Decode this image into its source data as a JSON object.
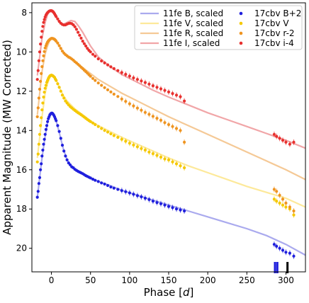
{
  "chart_data": {
    "type": "scatter",
    "xlabel_prefix": "Phase [",
    "xlabel_var": "d",
    "xlabel_suffix": "]",
    "ylabel": "Apparent Magnitude (MW Corrected)",
    "xlim": [
      -25,
      325
    ],
    "ylim": [
      21.2,
      7.5
    ],
    "y_inverted": true,
    "x_ticks": [
      0,
      50,
      100,
      150,
      200,
      250,
      300
    ],
    "y_ticks": [
      8,
      10,
      12,
      14,
      16,
      18,
      20
    ],
    "legend_position": "top-right",
    "legend": [
      {
        "label": "11fe B, scaled",
        "kind": "line",
        "color": "#aaaaee"
      },
      {
        "label": "11fe V, scaled",
        "kind": "line",
        "color": "#fde99a"
      },
      {
        "label": "11fe R, scaled",
        "kind": "line",
        "color": "#f5c996"
      },
      {
        "label": "11fe I, scaled",
        "kind": "line",
        "color": "#f1a6a8"
      },
      {
        "label": "17cbv B+2",
        "kind": "point",
        "color": "#1f1fdd"
      },
      {
        "label": "17cbv V",
        "kind": "point",
        "color": "#f5c800"
      },
      {
        "label": "17cbv r-2",
        "kind": "point",
        "color": "#ef9420"
      },
      {
        "label": "17cbv i-4",
        "kind": "point",
        "color": "#e8302e"
      }
    ],
    "spectra_epochs": [
      286,
      289,
      302
    ],
    "lines": [
      {
        "color": "#aaaaee",
        "x": [
          -18,
          -12,
          -8,
          -5,
          -2,
          0,
          3,
          6,
          10,
          15,
          20,
          25,
          30,
          40,
          50,
          60,
          75,
          90,
          110,
          130,
          150,
          175,
          200,
          225,
          250,
          275,
          300,
          325
        ],
        "y": [
          17.4,
          15.4,
          14.3,
          13.6,
          13.2,
          13.1,
          13.2,
          13.5,
          14.1,
          14.9,
          15.5,
          15.8,
          16.0,
          16.2,
          16.4,
          16.6,
          16.8,
          17.05,
          17.3,
          17.55,
          17.8,
          18.1,
          18.4,
          18.7,
          19.0,
          19.35,
          19.8,
          20.35
        ]
      },
      {
        "color": "#fde99a",
        "x": [
          -18,
          -12,
          -8,
          -5,
          -2,
          0,
          3,
          6,
          10,
          15,
          20,
          25,
          30,
          40,
          50,
          60,
          75,
          90,
          110,
          130,
          150,
          175,
          200,
          225,
          250,
          275,
          300,
          325
        ],
        "y": [
          15.4,
          13.3,
          12.1,
          11.6,
          11.3,
          11.2,
          11.25,
          11.4,
          11.8,
          12.2,
          12.5,
          12.7,
          12.9,
          13.2,
          13.5,
          13.75,
          14.05,
          14.35,
          14.7,
          15.05,
          15.4,
          15.8,
          16.15,
          16.5,
          16.85,
          17.15,
          17.45,
          17.9
        ]
      },
      {
        "color": "#f5c996",
        "x": [
          -18,
          -12,
          -8,
          -5,
          -2,
          0,
          3,
          6,
          10,
          15,
          20,
          25,
          30,
          40,
          50,
          60,
          75,
          90,
          110,
          130,
          150,
          175,
          200,
          225,
          250,
          275,
          300,
          325
        ],
        "y": [
          13.2,
          11.0,
          10.1,
          9.7,
          9.4,
          9.3,
          9.3,
          9.4,
          9.7,
          10.0,
          10.2,
          10.3,
          10.5,
          10.8,
          11.1,
          11.4,
          11.75,
          12.1,
          12.5,
          12.9,
          13.3,
          13.75,
          14.2,
          14.65,
          15.1,
          15.55,
          16.0,
          16.5
        ]
      },
      {
        "color": "#f1a6a8",
        "x": [
          -18,
          -12,
          -8,
          -5,
          -2,
          0,
          3,
          6,
          10,
          15,
          20,
          25,
          30,
          35,
          40,
          50,
          60,
          75,
          90,
          110,
          130,
          150,
          175,
          200,
          225,
          250,
          275,
          300,
          325
        ],
        "y": [
          11.2,
          9.3,
          8.5,
          8.1,
          7.9,
          7.9,
          7.95,
          8.2,
          8.5,
          8.6,
          8.5,
          8.4,
          8.45,
          8.7,
          9.0,
          9.7,
          10.25,
          10.75,
          11.15,
          11.55,
          11.95,
          12.3,
          12.7,
          13.1,
          13.45,
          13.8,
          14.15,
          14.5,
          14.9
        ]
      }
    ],
    "series": [
      {
        "name": "17cbv B+2",
        "color": "#1f1fdd",
        "x": [
          -18,
          -17,
          -16,
          -15,
          -14,
          -13,
          -12,
          -11,
          -10,
          -9,
          -8,
          -7,
          -6,
          -5,
          -4,
          -3,
          -2,
          -1,
          0,
          1,
          2,
          3,
          4,
          5,
          6,
          8,
          10,
          12,
          14,
          16,
          18,
          20,
          22,
          24,
          26,
          28,
          30,
          32,
          34,
          36,
          38,
          40,
          42,
          44,
          46,
          48,
          50,
          53,
          56,
          60,
          64,
          68,
          72,
          76,
          80,
          85,
          90,
          95,
          100,
          105,
          110,
          115,
          120,
          125,
          130,
          135,
          140,
          145,
          150,
          155,
          160,
          165,
          170,
          285,
          288,
          292,
          296,
          300,
          305,
          310
        ],
        "y": [
          17.4,
          17.1,
          16.7,
          16.4,
          16.0,
          15.7,
          15.3,
          15.0,
          14.7,
          14.45,
          14.2,
          13.95,
          13.75,
          13.55,
          13.4,
          13.3,
          13.2,
          13.15,
          13.12,
          13.12,
          13.16,
          13.22,
          13.3,
          13.4,
          13.5,
          13.75,
          14.05,
          14.4,
          14.75,
          15.05,
          15.3,
          15.5,
          15.65,
          15.75,
          15.85,
          15.9,
          15.98,
          16.03,
          16.08,
          16.12,
          16.16,
          16.2,
          16.25,
          16.3,
          16.34,
          16.38,
          16.42,
          16.48,
          16.54,
          16.6,
          16.67,
          16.73,
          16.8,
          16.88,
          16.94,
          17.0,
          17.06,
          17.12,
          17.18,
          17.25,
          17.32,
          17.38,
          17.45,
          17.52,
          17.6,
          17.67,
          17.73,
          17.8,
          17.87,
          17.93,
          18.0,
          18.05,
          18.1,
          19.8,
          19.9,
          20.0,
          20.1,
          20.2,
          20.25,
          20.4
        ]
      },
      {
        "name": "17cbv V",
        "color": "#f5c800",
        "x": [
          -18,
          -17,
          -16,
          -15,
          -14,
          -13,
          -12,
          -11,
          -10,
          -9,
          -8,
          -7,
          -6,
          -5,
          -4,
          -3,
          -2,
          -1,
          0,
          1,
          2,
          3,
          4,
          5,
          6,
          8,
          10,
          12,
          14,
          16,
          18,
          20,
          22,
          24,
          26,
          28,
          30,
          32,
          34,
          36,
          38,
          40,
          42,
          44,
          46,
          48,
          50,
          53,
          56,
          60,
          64,
          68,
          72,
          76,
          80,
          85,
          90,
          95,
          100,
          105,
          110,
          115,
          120,
          125,
          130,
          135,
          140,
          145,
          150,
          155,
          160,
          165,
          170,
          285,
          288,
          292,
          296,
          300,
          305,
          310
        ],
        "y": [
          15.6,
          15.2,
          14.7,
          14.2,
          13.75,
          13.35,
          12.95,
          12.6,
          12.3,
          12.05,
          11.85,
          11.7,
          11.55,
          11.45,
          11.35,
          11.28,
          11.22,
          11.2,
          11.18,
          11.2,
          11.22,
          11.26,
          11.3,
          11.38,
          11.45,
          11.62,
          11.8,
          12.0,
          12.2,
          12.35,
          12.5,
          12.6,
          12.7,
          12.78,
          12.85,
          12.92,
          12.98,
          13.04,
          13.1,
          13.15,
          13.2,
          13.26,
          13.32,
          13.38,
          13.44,
          13.5,
          13.55,
          13.62,
          13.7,
          13.8,
          13.9,
          14.0,
          14.08,
          14.17,
          14.26,
          14.35,
          14.45,
          14.55,
          14.65,
          14.74,
          14.83,
          14.92,
          15.0,
          15.1,
          15.18,
          15.27,
          15.36,
          15.45,
          15.5,
          15.6,
          15.7,
          15.8,
          15.9,
          17.5,
          17.6,
          17.7,
          17.8,
          17.9,
          18.0,
          18.3
        ]
      },
      {
        "name": "17cbv r-2",
        "color": "#ef9420",
        "x": [
          -18,
          -17,
          -16,
          -15,
          -14,
          -13,
          -12,
          -11,
          -10,
          -9,
          -8,
          -7,
          -6,
          -5,
          -4,
          -3,
          -2,
          -1,
          0,
          1,
          2,
          3,
          4,
          5,
          6,
          8,
          10,
          12,
          14,
          16,
          18,
          20,
          22,
          24,
          26,
          28,
          30,
          32,
          34,
          36,
          38,
          40,
          42,
          44,
          46,
          48,
          50,
          53,
          56,
          60,
          64,
          68,
          72,
          76,
          80,
          85,
          90,
          95,
          100,
          105,
          110,
          115,
          120,
          125,
          130,
          135,
          140,
          145,
          150,
          155,
          160,
          165,
          170,
          285,
          288,
          292,
          296,
          300,
          305,
          310
        ],
        "y": [
          13.3,
          12.85,
          12.35,
          11.9,
          11.5,
          11.1,
          10.75,
          10.45,
          10.2,
          9.98,
          9.8,
          9.68,
          9.58,
          9.5,
          9.44,
          9.4,
          9.36,
          9.33,
          9.31,
          9.31,
          9.32,
          9.34,
          9.36,
          9.4,
          9.45,
          9.55,
          9.68,
          9.82,
          9.96,
          10.06,
          10.14,
          10.2,
          10.26,
          10.3,
          10.36,
          10.42,
          10.5,
          10.56,
          10.63,
          10.7,
          10.78,
          10.85,
          10.93,
          11.0,
          11.08,
          11.16,
          11.24,
          11.35,
          11.45,
          11.58,
          11.7,
          11.82,
          11.93,
          12.04,
          12.15,
          12.27,
          12.4,
          12.52,
          12.64,
          12.75,
          12.86,
          12.97,
          13.08,
          13.18,
          13.28,
          13.38,
          13.48,
          13.6,
          13.7,
          13.8,
          13.9,
          14.0,
          14.6,
          17.0,
          17.1,
          17.3,
          17.5,
          17.7,
          17.9,
          18.1
        ]
      },
      {
        "name": "17cbv i-4",
        "color": "#e8302e",
        "x": [
          -18,
          -17,
          -16,
          -15,
          -14,
          -13,
          -12,
          -11,
          -10,
          -9,
          -8,
          -7,
          -6,
          -5,
          -4,
          -3,
          -2,
          -1,
          0,
          1,
          2,
          3,
          4,
          5,
          6,
          8,
          10,
          12,
          14,
          16,
          18,
          20,
          22,
          24,
          26,
          28,
          30,
          32,
          34,
          36,
          38,
          40,
          42,
          44,
          46,
          48,
          50,
          53,
          56,
          60,
          64,
          68,
          72,
          76,
          80,
          85,
          90,
          95,
          100,
          105,
          110,
          115,
          120,
          125,
          130,
          135,
          140,
          145,
          150,
          155,
          160,
          165,
          170,
          285,
          288,
          292,
          296,
          300,
          305,
          310
        ],
        "y": [
          11.4,
          10.95,
          10.45,
          10.0,
          9.6,
          9.25,
          8.95,
          8.7,
          8.5,
          8.35,
          8.22,
          8.12,
          8.05,
          8.0,
          7.96,
          7.93,
          7.91,
          7.9,
          7.9,
          7.92,
          7.95,
          8.0,
          8.06,
          8.13,
          8.2,
          8.32,
          8.44,
          8.54,
          8.6,
          8.63,
          8.62,
          8.58,
          8.55,
          8.54,
          8.56,
          8.62,
          8.72,
          8.85,
          9.0,
          9.15,
          9.3,
          9.45,
          9.58,
          9.7,
          9.82,
          9.92,
          10.0,
          10.12,
          10.22,
          10.35,
          10.46,
          10.56,
          10.66,
          10.76,
          10.85,
          10.95,
          11.05,
          11.14,
          11.23,
          11.32,
          11.4,
          11.48,
          11.56,
          11.64,
          11.72,
          11.8,
          11.88,
          11.96,
          12.04,
          12.12,
          12.2,
          12.28,
          12.5,
          14.2,
          14.3,
          14.4,
          14.5,
          14.6,
          14.7,
          14.6
        ]
      }
    ]
  }
}
